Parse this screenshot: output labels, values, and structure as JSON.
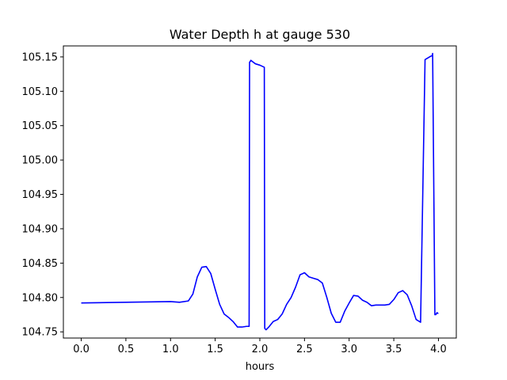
{
  "chart_data": {
    "type": "line",
    "title": "Water Depth h at gauge 530",
    "xlabel": "hours",
    "ylabel": "",
    "xlim": [
      -0.2,
      4.2
    ],
    "ylim": [
      104.741,
      105.166
    ],
    "xticks": [
      0.0,
      0.5,
      1.0,
      1.5,
      2.0,
      2.5,
      3.0,
      3.5,
      4.0
    ],
    "xtick_labels": [
      "0.0",
      "0.5",
      "1.0",
      "1.5",
      "2.0",
      "2.5",
      "3.0",
      "3.5",
      "4.0"
    ],
    "yticks": [
      104.75,
      104.8,
      104.85,
      104.9,
      104.95,
      105.0,
      105.05,
      105.1,
      105.15
    ],
    "ytick_labels": [
      "104.75",
      "104.80",
      "104.85",
      "104.90",
      "104.95",
      "105.00",
      "105.05",
      "105.10",
      "105.15"
    ],
    "grid": false,
    "series": [
      {
        "color": "#0000ff",
        "x": [
          0.0,
          0.5,
          1.0,
          1.1,
          1.2,
          1.25,
          1.3,
          1.35,
          1.4,
          1.45,
          1.5,
          1.55,
          1.6,
          1.65,
          1.7,
          1.75,
          1.8,
          1.85,
          1.88,
          1.885,
          1.9,
          1.92,
          1.95,
          2.0,
          2.05,
          2.055,
          2.07,
          2.1,
          2.15,
          2.2,
          2.25,
          2.3,
          2.35,
          2.4,
          2.45,
          2.5,
          2.55,
          2.6,
          2.65,
          2.7,
          2.75,
          2.8,
          2.85,
          2.9,
          2.95,
          3.0,
          3.05,
          3.1,
          3.15,
          3.2,
          3.25,
          3.3,
          3.35,
          3.4,
          3.45,
          3.5,
          3.55,
          3.6,
          3.65,
          3.7,
          3.75,
          3.8,
          3.85,
          3.9,
          3.93,
          3.935,
          3.96,
          3.97,
          3.985,
          3.99,
          4.0
        ],
        "y": [
          104.792,
          104.793,
          104.794,
          104.793,
          104.795,
          104.805,
          104.83,
          104.844,
          104.845,
          104.835,
          104.812,
          104.79,
          104.776,
          104.771,
          104.765,
          104.757,
          104.757,
          104.758,
          104.758,
          105.142,
          105.145,
          105.143,
          105.14,
          105.138,
          105.135,
          104.755,
          104.753,
          104.757,
          104.765,
          104.768,
          104.776,
          104.79,
          104.8,
          104.815,
          104.833,
          104.836,
          104.83,
          104.828,
          104.826,
          104.821,
          104.8,
          104.777,
          104.764,
          104.764,
          104.78,
          104.792,
          104.803,
          104.802,
          104.796,
          104.793,
          104.788,
          104.789,
          104.789,
          104.789,
          104.79,
          104.797,
          104.807,
          104.81,
          104.804,
          104.788,
          104.768,
          104.764,
          105.146,
          105.15,
          105.152,
          105.155,
          104.775,
          104.775,
          104.778,
          104.777,
          104.777
        ]
      }
    ]
  }
}
